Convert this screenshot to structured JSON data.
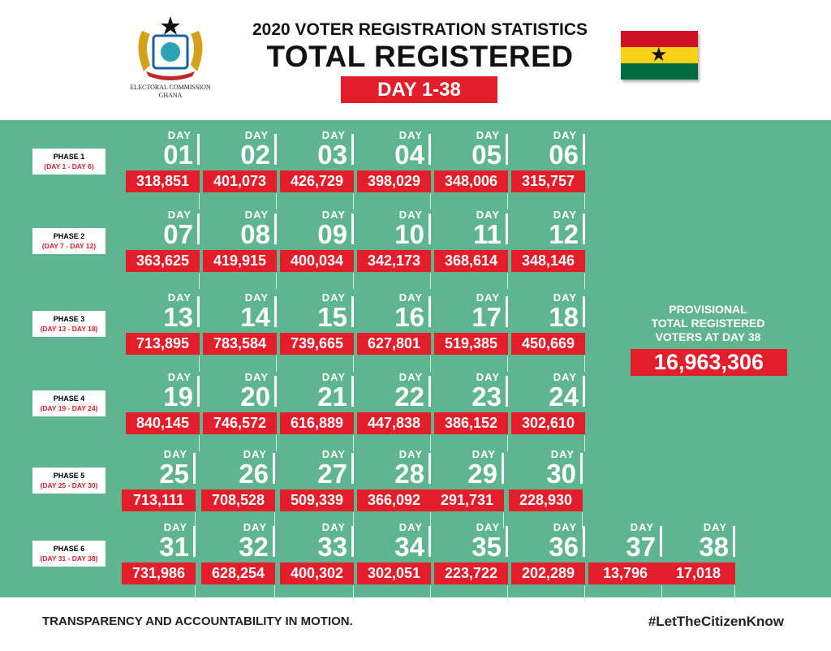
{
  "header": {
    "org": "ELECTORAL COMMISSION",
    "country": "GHANA",
    "subtitle": "2020 VOTER REGISTRATION STATISTICS",
    "title": "TOTAL REGISTERED",
    "range": "DAY 1-38"
  },
  "colors": {
    "green": "#5fb58f",
    "red": "#e31e2a",
    "flag_red": "#ce1126",
    "flag_gold": "#fcd116",
    "flag_green": "#006b3f"
  },
  "day_label": "DAY",
  "phases": [
    {
      "label": "PHASE 1",
      "range": "(DAY 1 - DAY 6)",
      "days": [
        [
          "01",
          "318,851"
        ],
        [
          "02",
          "401,073"
        ],
        [
          "03",
          "426,729"
        ],
        [
          "04",
          "398,029"
        ],
        [
          "05",
          "348,006"
        ],
        [
          "06",
          "315,757"
        ]
      ]
    },
    {
      "label": "PHASE 2",
      "range": "(DAY 7 - DAY 12)",
      "days": [
        [
          "07",
          "363,625"
        ],
        [
          "08",
          "419,915"
        ],
        [
          "09",
          "400,034"
        ],
        [
          "10",
          "342,173"
        ],
        [
          "11",
          "368,614"
        ],
        [
          "12",
          "348,146"
        ]
      ]
    },
    {
      "label": "PHASE 3",
      "range": "(DAY 13 - DAY 18)",
      "days": [
        [
          "13",
          "713,895"
        ],
        [
          "14",
          "783,584"
        ],
        [
          "15",
          "739,665"
        ],
        [
          "16",
          "627,801"
        ],
        [
          "17",
          "519,385"
        ],
        [
          "18",
          "450,669"
        ]
      ]
    },
    {
      "label": "PHASE 4",
      "range": "(DAY 19 - DAY 24)",
      "days": [
        [
          "19",
          "840,145"
        ],
        [
          "20",
          "746,572"
        ],
        [
          "21",
          "616,889"
        ],
        [
          "22",
          "447,838"
        ],
        [
          "23",
          "386,152"
        ],
        [
          "24",
          "302,610"
        ]
      ]
    },
    {
      "label": "PHASE 5",
      "range": "(DAY 25 - DAY 30)",
      "days": [
        [
          "25",
          "713,111"
        ],
        [
          "26",
          "708,528"
        ],
        [
          "27",
          "509,339"
        ],
        [
          "28",
          "366,092"
        ],
        [
          "29",
          "291,731"
        ],
        [
          "30",
          "228,930"
        ]
      ]
    },
    {
      "label": "PHASE 6",
      "range": "(DAY 31 - DAY 38)",
      "days": [
        [
          "31",
          "731,986"
        ],
        [
          "32",
          "628,254"
        ],
        [
          "33",
          "400,302"
        ],
        [
          "34",
          "302,051"
        ],
        [
          "35",
          "223,722"
        ],
        [
          "36",
          "202,289"
        ],
        [
          "37",
          "13,796"
        ],
        [
          "38",
          "17,018"
        ]
      ]
    }
  ],
  "total": {
    "line1": "PROVISIONAL",
    "line2": "TOTAL REGISTERED",
    "line3": "VOTERS AT DAY 38",
    "value": "16,963,306"
  },
  "footer": {
    "motto": "TRANSPARENCY AND ACCOUNTABILITY IN MOTION.",
    "hashtag": "#LetTheCitizenKnow"
  }
}
